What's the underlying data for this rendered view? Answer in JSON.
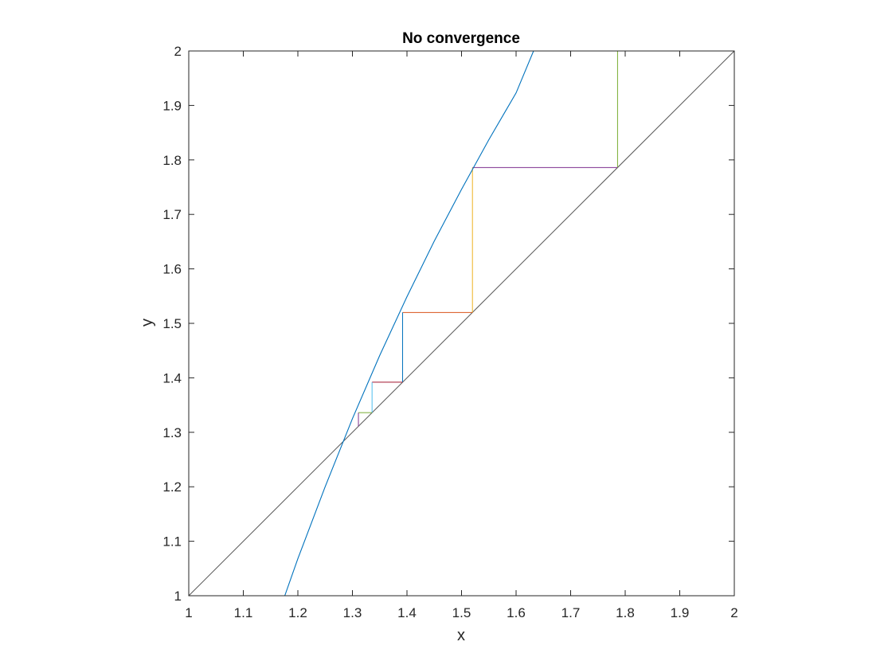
{
  "chart_data": {
    "type": "line",
    "title": "No convergence",
    "xlabel": "x",
    "ylabel": "y",
    "xlim": [
      1,
      2
    ],
    "ylim": [
      1,
      2
    ],
    "xticks": [
      1,
      1.1,
      1.2,
      1.3,
      1.4,
      1.5,
      1.6,
      1.7,
      1.8,
      1.9,
      2
    ],
    "yticks": [
      1,
      1.1,
      1.2,
      1.3,
      1.4,
      1.5,
      1.6,
      1.7,
      1.8,
      1.9,
      2
    ],
    "grid": false,
    "box": true,
    "curve": {
      "color": "#0072BD",
      "x": [
        1.176,
        1.2,
        1.25,
        1.3,
        1.35,
        1.4,
        1.45,
        1.5,
        1.55,
        1.6,
        1.632
      ],
      "y": [
        1.0,
        1.068,
        1.2,
        1.325,
        1.441,
        1.549,
        1.651,
        1.746,
        1.837,
        1.923,
        2.0
      ]
    },
    "identity_line": {
      "color": "#555555",
      "x": [
        1,
        2
      ],
      "y": [
        1,
        2
      ]
    },
    "cobweb": [
      {
        "color": "#77AC30",
        "x": [
          1.786,
          1.786
        ],
        "y": [
          2.0,
          1.786
        ]
      },
      {
        "color": "#7E2F8E",
        "x": [
          1.786,
          1.52
        ],
        "y": [
          1.786,
          1.786
        ]
      },
      {
        "color": "#EDB120",
        "x": [
          1.52,
          1.52
        ],
        "y": [
          1.786,
          1.52
        ]
      },
      {
        "color": "#D95319",
        "x": [
          1.52,
          1.392
        ],
        "y": [
          1.52,
          1.52
        ]
      },
      {
        "color": "#0072BD",
        "x": [
          1.392,
          1.392
        ],
        "y": [
          1.52,
          1.392
        ]
      },
      {
        "color": "#A2142F",
        "x": [
          1.392,
          1.336
        ],
        "y": [
          1.392,
          1.392
        ]
      },
      {
        "color": "#4DBEEE",
        "x": [
          1.336,
          1.336
        ],
        "y": [
          1.392,
          1.336
        ]
      },
      {
        "color": "#77AC30",
        "x": [
          1.336,
          1.311
        ],
        "y": [
          1.336,
          1.336
        ]
      },
      {
        "color": "#7E2F8E",
        "x": [
          1.311,
          1.311
        ],
        "y": [
          1.336,
          1.311
        ]
      }
    ]
  }
}
